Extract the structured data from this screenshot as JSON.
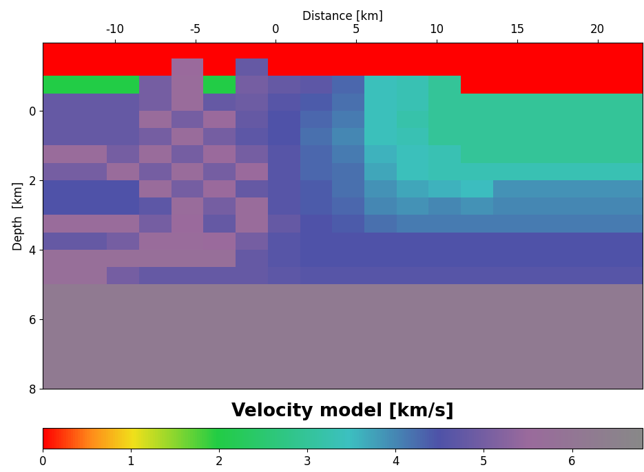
{
  "chart_data": {
    "type": "heatmap",
    "title": "Velocity model [km/s]",
    "xlabel": "Distance [km]",
    "ylabel": "Depth  [km]",
    "x": [
      -13.5,
      -11.5,
      -9.5,
      -7.5,
      -5.5,
      -3.5,
      -1.5,
      0.5,
      2.5,
      4.5,
      6.5,
      8.5,
      10.5,
      12.5,
      14.5,
      16.5,
      18.5,
      20.5,
      22.5
    ],
    "y": [
      -1.75,
      -1.25,
      -0.75,
      -0.25,
      0.25,
      0.75,
      1.25,
      1.75,
      2.25,
      2.75,
      3.25,
      3.75,
      4.25,
      4.75,
      5.25,
      5.75,
      6.25,
      6.75,
      7.25,
      7.75
    ],
    "cells": [
      [
        0,
        0,
        0,
        0,
        0,
        0,
        0,
        0,
        0,
        0,
        0,
        0,
        0,
        0,
        0,
        0,
        0,
        0,
        0
      ],
      [
        0,
        0,
        0,
        0,
        5.5,
        0,
        4.8,
        0,
        0,
        0,
        0,
        0,
        0,
        0,
        0,
        0,
        0,
        0,
        0
      ],
      [
        2.0,
        2.0,
        2.0,
        5.0,
        5.6,
        2.0,
        5.0,
        4.8,
        4.7,
        4.3,
        3.4,
        3.3,
        3.0,
        0,
        0,
        0,
        0,
        0,
        0
      ],
      [
        4.8,
        4.8,
        4.8,
        5.0,
        5.6,
        4.8,
        4.9,
        4.6,
        4.4,
        4.2,
        3.4,
        3.3,
        3.0,
        3.0,
        3.0,
        3.0,
        3.0,
        3.0,
        3.0
      ],
      [
        4.8,
        4.8,
        4.8,
        5.6,
        5.0,
        5.5,
        4.8,
        4.5,
        4.3,
        4.1,
        3.4,
        3.2,
        3.0,
        3.0,
        3.0,
        3.0,
        3.0,
        3.0,
        3.0
      ],
      [
        4.8,
        4.8,
        4.8,
        5.0,
        5.6,
        5.0,
        4.7,
        4.5,
        4.2,
        4.0,
        3.4,
        3.3,
        3.0,
        3.0,
        3.0,
        3.0,
        3.0,
        3.0,
        3.0
      ],
      [
        5.6,
        5.6,
        5.0,
        5.6,
        5.0,
        5.5,
        5.0,
        4.6,
        4.3,
        4.1,
        3.6,
        3.4,
        3.3,
        3.0,
        3.0,
        3.0,
        3.0,
        3.0,
        3.0
      ],
      [
        5.0,
        5.0,
        5.6,
        5.0,
        5.6,
        5.0,
        5.5,
        4.6,
        4.3,
        4.2,
        3.7,
        3.4,
        3.3,
        3.3,
        3.3,
        3.3,
        3.3,
        3.3,
        3.3
      ],
      [
        4.5,
        4.5,
        4.5,
        5.6,
        5.0,
        5.5,
        4.8,
        4.6,
        4.4,
        4.2,
        3.9,
        3.7,
        3.6,
        3.5,
        3.9,
        3.9,
        3.9,
        3.9,
        3.9
      ],
      [
        4.5,
        4.5,
        4.5,
        4.7,
        5.6,
        5.0,
        5.6,
        4.6,
        4.4,
        4.3,
        4.0,
        3.9,
        4.0,
        3.9,
        4.0,
        4.0,
        4.0,
        4.0,
        4.0
      ],
      [
        5.6,
        5.6,
        5.6,
        5.0,
        5.5,
        4.8,
        5.6,
        4.8,
        4.5,
        4.4,
        4.2,
        4.1,
        4.1,
        4.1,
        4.1,
        4.1,
        4.1,
        4.1,
        4.1
      ],
      [
        4.8,
        4.8,
        5.0,
        5.6,
        5.6,
        5.5,
        5.0,
        4.6,
        4.5,
        4.5,
        4.5,
        4.5,
        4.5,
        4.5,
        4.5,
        4.5,
        4.5,
        4.5,
        4.5
      ],
      [
        5.7,
        5.7,
        5.7,
        5.7,
        5.7,
        5.7,
        4.8,
        4.6,
        4.5,
        4.5,
        4.5,
        4.5,
        4.5,
        4.5,
        4.5,
        4.5,
        4.5,
        4.5,
        4.5
      ],
      [
        5.7,
        5.7,
        5.0,
        4.8,
        4.8,
        4.8,
        4.8,
        4.7,
        4.6,
        4.6,
        4.6,
        4.6,
        4.6,
        4.6,
        4.6,
        4.6,
        4.6,
        4.6,
        4.6
      ],
      [
        6.2,
        6.2,
        6.2,
        6.2,
        6.2,
        6.2,
        6.2,
        6.2,
        6.2,
        6.2,
        6.2,
        6.2,
        6.2,
        6.2,
        6.2,
        6.2,
        6.2,
        6.2,
        6.2
      ],
      [
        6.2,
        6.2,
        6.2,
        6.2,
        6.2,
        6.2,
        6.2,
        6.2,
        6.2,
        6.2,
        6.2,
        6.2,
        6.2,
        6.2,
        6.2,
        6.2,
        6.2,
        6.2,
        6.2
      ],
      [
        6.2,
        6.2,
        6.2,
        6.2,
        6.2,
        6.2,
        6.2,
        6.2,
        6.2,
        6.2,
        6.2,
        6.2,
        6.2,
        6.2,
        6.2,
        6.2,
        6.2,
        6.2,
        6.2
      ],
      [
        6.2,
        6.2,
        6.2,
        6.2,
        6.2,
        6.2,
        6.2,
        6.2,
        6.2,
        6.2,
        6.2,
        6.2,
        6.2,
        6.2,
        6.2,
        6.2,
        6.2,
        6.2,
        6.2
      ],
      [
        6.2,
        6.2,
        6.2,
        6.2,
        6.2,
        6.2,
        6.2,
        6.2,
        6.2,
        6.2,
        6.2,
        6.2,
        6.2,
        6.2,
        6.2,
        6.2,
        6.2,
        6.2,
        6.2
      ],
      [
        6.2,
        6.2,
        6.2,
        6.2,
        6.2,
        6.2,
        6.2,
        6.2,
        6.2,
        6.2,
        6.2,
        6.2,
        6.2,
        6.2,
        6.2,
        6.2,
        6.2,
        6.2,
        6.2
      ]
    ],
    "xlim": [
      -14.5,
      22.8
    ],
    "xticks": [
      -10,
      -5,
      0,
      5,
      10,
      15,
      20
    ],
    "ylim": [
      8,
      -1.96
    ],
    "yticks": [
      0,
      2,
      4,
      6,
      8
    ],
    "colorbar_range": [
      0,
      6.8
    ],
    "colorbar_ticks": [
      0,
      1,
      2,
      3,
      4,
      5,
      6
    ]
  }
}
